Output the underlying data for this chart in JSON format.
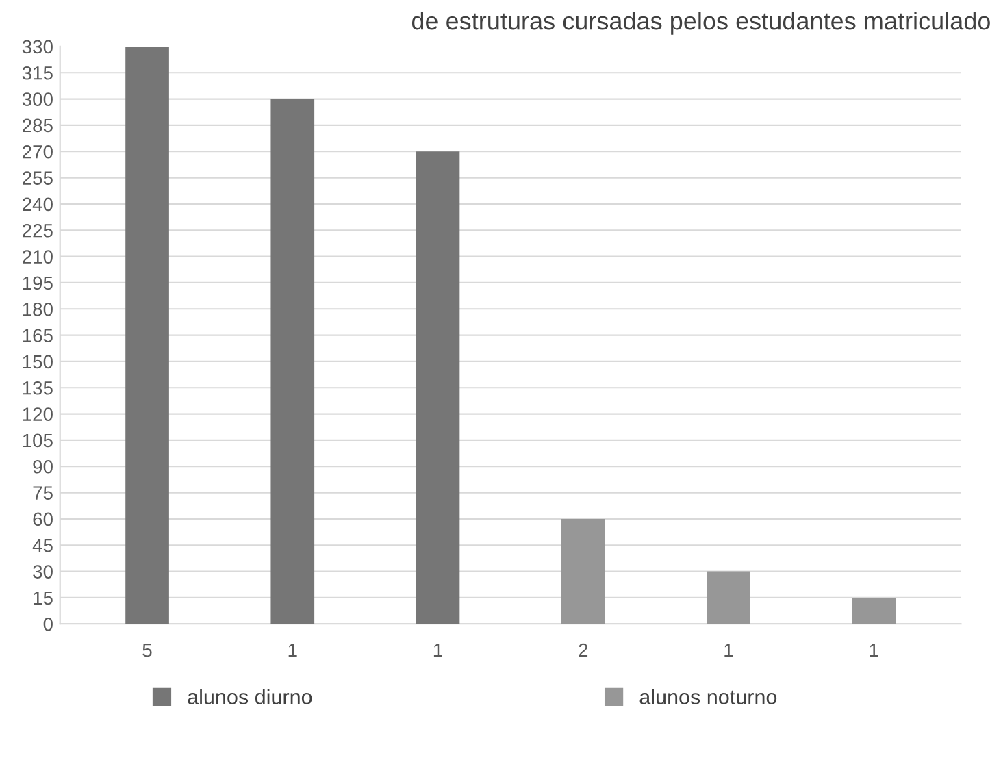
{
  "chart_data": {
    "type": "bar",
    "title": "de estruturas cursadas pelos estudantes matriculado",
    "categories": [
      "5",
      "1",
      "1",
      "2",
      "1",
      "1"
    ],
    "series": [
      {
        "name": "alunos diurno",
        "color": "#767676",
        "values": [
          330,
          300,
          270,
          null,
          null,
          null
        ]
      },
      {
        "name": "alunos noturno",
        "color": "#979797",
        "values": [
          null,
          null,
          null,
          60,
          30,
          15
        ]
      }
    ],
    "ylim": [
      0,
      330
    ],
    "yticks": [
      0,
      15,
      30,
      45,
      60,
      75,
      90,
      105,
      120,
      135,
      150,
      165,
      180,
      195,
      210,
      225,
      240,
      255,
      270,
      285,
      300,
      315,
      330
    ],
    "grid": "y",
    "legend": "bottom"
  }
}
